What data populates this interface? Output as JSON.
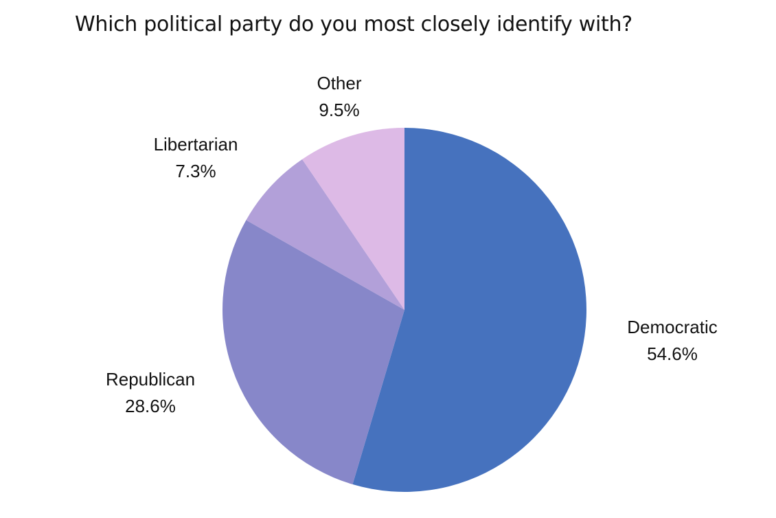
{
  "chart_data": {
    "type": "pie",
    "title": "Which political party do you most closely identify with?",
    "slices": [
      {
        "label": "Democratic",
        "value": 54.6,
        "value_label": "54.6%",
        "color": "#4672BE"
      },
      {
        "label": "Republican",
        "value": 28.6,
        "value_label": "28.6%",
        "color": "#8787C9"
      },
      {
        "label": "Libertarian",
        "value": 7.3,
        "value_label": "7.3%",
        "color": "#B2A0D9"
      },
      {
        "label": "Other",
        "value": 9.5,
        "value_label": "9.5%",
        "color": "#DDBAE6"
      }
    ],
    "start_angle": "12 o'clock",
    "direction": "clockwise",
    "legend": "none (labels outside slices)"
  }
}
